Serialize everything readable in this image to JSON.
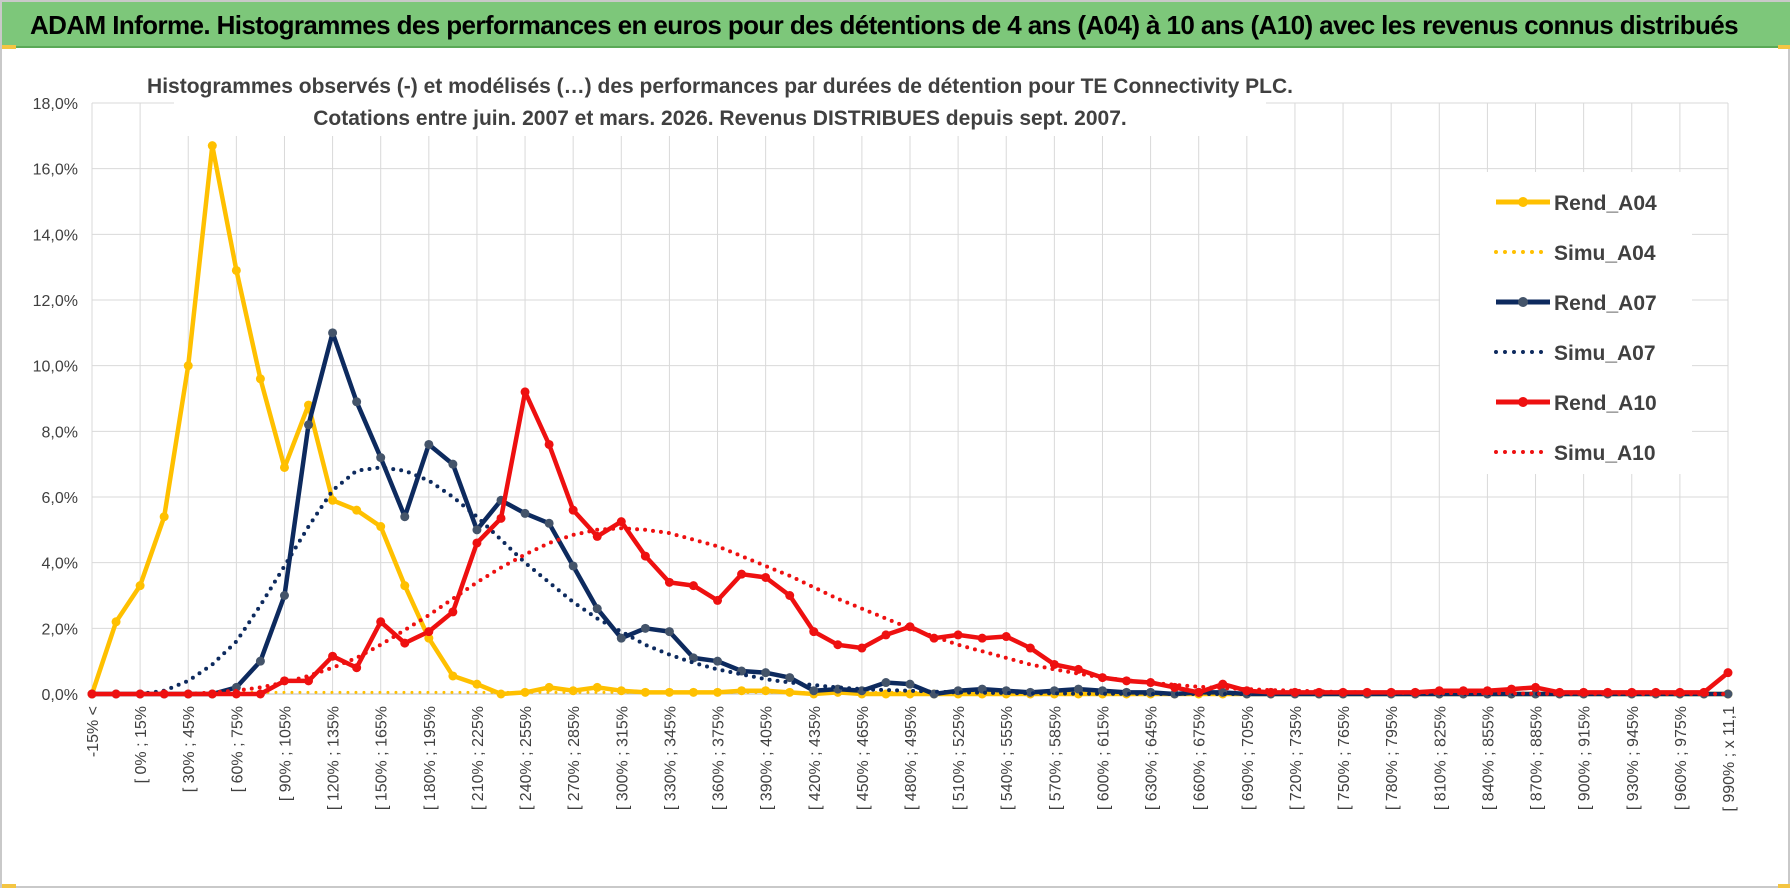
{
  "header": {
    "title": "ADAM Informe. Histogrammes des performances en euros pour des détentions de 4 ans (A04) à 10 ans (A10) avec les revenus connus distribués"
  },
  "colors": {
    "banner": "#7dc77a",
    "a04": "#ffc000",
    "a07": "#0d2a5e",
    "a10": "#ee1010",
    "grid": "#d9d9d9",
    "text": "#404040"
  },
  "chart_data": {
    "type": "line",
    "title": [
      "Histogrammes observés (-) et modélisés (…) des performances par durées de détention pour TE Connectivity PLC.",
      "Cotations entre juin. 2007 et mars. 2026. Revenus DISTRIBUES depuis sept. 2007."
    ],
    "xlabel": "",
    "ylabel": "",
    "ylim": [
      0,
      18
    ],
    "y_ticks": [
      "0,0%",
      "2,0%",
      "4,0%",
      "6,0%",
      "8,0%",
      "10,0%",
      "12,0%",
      "14,0%",
      "16,0%",
      "18,0%"
    ],
    "x_tick_labels": [
      "-15% <",
      "[ 0% ; 15%",
      "[ 30% ; 45%",
      "[ 60% ; 75%",
      "[ 90% ; 105%",
      "[ 120% ; 135%",
      "[ 150% ; 165%",
      "[ 180% ; 195%",
      "[ 210% ; 225%",
      "[ 240% ; 255%",
      "[ 270% ; 285%",
      "[ 300% ; 315%",
      "[ 330% ; 345%",
      "[ 360% ; 375%",
      "[ 390% ; 405%",
      "[ 420% ; 435%",
      "[ 450% ; 465%",
      "[ 480% ; 495%",
      "[ 510% ; 525%",
      "[ 540% ; 555%",
      "[ 570% ; 585%",
      "[ 600% ; 615%",
      "[ 630% ; 645%",
      "[ 660% ; 675%",
      "[ 690% ; 705%",
      "[ 720% ; 735%",
      "[ 750% ; 765%",
      "[ 780% ; 795%",
      "[ 810% ; 825%",
      "[ 840% ; 855%",
      "[ 870% ; 885%",
      "[ 900% ; 915%",
      "[ 930% ; 945%",
      "[ 960% ; 975%",
      "[ 990% ; x 11,1"
    ],
    "num_points": 69,
    "legend_position": "right",
    "series": [
      {
        "name": "Rend_A04",
        "style": "solid",
        "color": "#ffc000",
        "values": [
          0,
          2.2,
          3.3,
          5.4,
          10,
          16.7,
          12.9,
          9.6,
          6.9,
          8.8,
          5.9,
          5.6,
          5.1,
          3.3,
          1.7,
          0.55,
          0.3,
          0,
          0.05,
          0.2,
          0.1,
          0.2,
          0.1,
          0.05,
          0.05,
          0.05,
          0.05,
          0.1,
          0.1,
          0.05,
          0,
          0.05,
          0,
          0,
          0,
          0,
          0,
          0,
          0,
          0,
          0,
          0,
          0,
          0,
          0,
          0,
          0,
          0,
          0,
          0,
          0,
          0,
          0,
          0,
          0,
          0,
          0,
          0,
          0,
          0,
          0,
          0,
          0,
          0,
          0,
          0,
          0,
          0,
          0
        ]
      },
      {
        "name": "Simu_A04",
        "style": "dotted",
        "color": "#ffc000",
        "values": [
          0,
          0,
          0,
          0,
          0,
          0.05,
          0.05,
          0.05,
          0.05,
          0.05,
          0.05,
          0.05,
          0.05,
          0.05,
          0.05,
          0.05,
          0.05,
          0.05,
          0.05,
          0.05,
          0.05,
          0.05,
          0.05,
          0.05,
          0.05,
          0.05,
          0.05,
          0.05,
          0.05,
          0.05,
          0.05,
          0.05,
          0.05,
          0.05,
          0.05,
          0.05,
          0.05,
          0.05,
          0.05,
          0.05,
          0.05,
          0.05,
          0.05,
          0.05,
          0,
          0,
          0,
          0,
          0,
          0,
          0,
          0,
          0,
          0,
          0,
          0,
          0,
          0,
          0,
          0,
          0,
          0,
          0,
          0,
          0,
          0,
          0,
          0,
          0
        ]
      },
      {
        "name": "Rend_A07",
        "style": "solid",
        "color": "#0d2a5e",
        "values": [
          0,
          0,
          0,
          0,
          0,
          0,
          0.2,
          1,
          3,
          8.2,
          11,
          8.9,
          7.2,
          5.4,
          7.6,
          7,
          5,
          5.9,
          5.5,
          5.2,
          3.9,
          2.6,
          1.7,
          2,
          1.9,
          1.1,
          1,
          0.7,
          0.65,
          0.5,
          0.1,
          0.15,
          0.1,
          0.35,
          0.3,
          0,
          0.1,
          0.15,
          0.1,
          0.05,
          0.1,
          0.15,
          0.1,
          0.05,
          0.05,
          0,
          0.05,
          0.05,
          0,
          0,
          0,
          0,
          0,
          0,
          0,
          0,
          0,
          0,
          0,
          0,
          0,
          0,
          0,
          0,
          0,
          0,
          0,
          0,
          0
        ]
      },
      {
        "name": "Simu_A07",
        "style": "dotted",
        "color": "#0d2a5e",
        "values": [
          0,
          0,
          0,
          0.1,
          0.4,
          0.9,
          1.6,
          2.7,
          3.9,
          5.1,
          6.2,
          6.8,
          6.9,
          6.8,
          6.5,
          6,
          5.4,
          4.7,
          4,
          3.4,
          2.8,
          2.3,
          1.9,
          1.5,
          1.2,
          0.95,
          0.75,
          0.6,
          0.45,
          0.35,
          0.27,
          0.2,
          0.15,
          0.12,
          0.1,
          0.07,
          0.05,
          0.04,
          0.03,
          0.02,
          0.02,
          0.01,
          0.01,
          0.01,
          0,
          0,
          0,
          0,
          0,
          0,
          0,
          0,
          0,
          0,
          0,
          0,
          0,
          0,
          0,
          0,
          0,
          0,
          0,
          0,
          0,
          0,
          0,
          0,
          0
        ]
      },
      {
        "name": "Rend_A10",
        "style": "solid",
        "color": "#ee1010",
        "values": [
          0,
          0,
          0,
          0,
          0,
          0,
          0,
          0,
          0.4,
          0.4,
          1.15,
          0.8,
          2.2,
          1.55,
          1.9,
          2.5,
          4.6,
          5.35,
          9.2,
          7.6,
          5.6,
          4.8,
          5.25,
          4.2,
          3.4,
          3.3,
          2.85,
          3.65,
          3.55,
          3,
          1.9,
          1.5,
          1.4,
          1.8,
          2.05,
          1.7,
          1.8,
          1.7,
          1.75,
          1.4,
          0.9,
          0.75,
          0.5,
          0.4,
          0.35,
          0.2,
          0.05,
          0.3,
          0.1,
          0.05,
          0.05,
          0.05,
          0.05,
          0.05,
          0.05,
          0.05,
          0.1,
          0.1,
          0.1,
          0.15,
          0.2,
          0.05,
          0.05,
          0.05,
          0.05,
          0.05,
          0.05,
          0.05,
          0.65
        ]
      },
      {
        "name": "Simu_A10",
        "style": "dotted",
        "color": "#ee1010",
        "values": [
          0,
          0,
          0,
          0,
          0,
          0.05,
          0.1,
          0.2,
          0.35,
          0.55,
          0.8,
          1.1,
          1.5,
          1.95,
          2.4,
          2.9,
          3.4,
          3.85,
          4.25,
          4.6,
          4.85,
          5,
          5.05,
          5,
          4.9,
          4.7,
          4.5,
          4.2,
          3.9,
          3.6,
          3.25,
          2.9,
          2.6,
          2.3,
          2,
          1.75,
          1.5,
          1.3,
          1.1,
          0.9,
          0.75,
          0.62,
          0.5,
          0.42,
          0.34,
          0.28,
          0.22,
          0.18,
          0.15,
          0.12,
          0.1,
          0.08,
          0.06,
          0.05,
          0.04,
          0.03,
          0.03,
          0.02,
          0.02,
          0.02,
          0.01,
          0.01,
          0.01,
          0.01,
          0,
          0,
          0,
          0,
          0
        ]
      }
    ]
  }
}
